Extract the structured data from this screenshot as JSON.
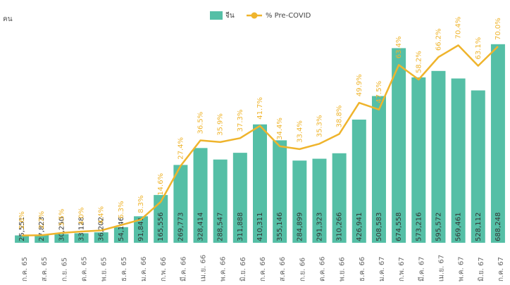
{
  "chart_data": {
    "type": "bar_line",
    "ylabel": "คน",
    "categories": [
      "ก.ค. 65",
      "ส.ค. 65",
      "ก.ย. 65",
      "ต.ค. 65",
      "พ.ย. 65",
      "ธ.ค. 65",
      "ม.ค. 66",
      "ก.พ. 66",
      "มี.ค. 66",
      "เม.ย. 66",
      "พ.ค. 66",
      "มิ.ย. 66",
      "ก.ค. 66",
      "ส.ค. 66",
      "ก.ย. 66",
      "ต.ค. 66",
      "พ.ย. 66",
      "ธ.ค. 66",
      "ม.ค. 67",
      "ก.พ. 67",
      "มี.ค. 67",
      "เม.ย. 67",
      "พ.ค. 67",
      "มิ.ย. 67",
      "ก.ค. 67"
    ],
    "series": [
      {
        "name": "จีน",
        "type": "bar",
        "color": "#55bfa6",
        "values": [
          25551,
          27823,
          30250,
          33128,
          36202,
          54146,
          91841,
          165556,
          269773,
          328414,
          288547,
          311888,
          410311,
          355146,
          284899,
          291323,
          310266,
          426941,
          508583,
          674558,
          573216,
          595572,
          569461,
          528112,
          688248
        ],
        "value_labels": [
          "25,551",
          "27,823",
          "30,250",
          "33,128",
          "36,202",
          "54,146",
          "91,841",
          "165,556",
          "269,773",
          "328,414",
          "288,547",
          "311,888",
          "410,311",
          "355,146",
          "284,899",
          "291,323",
          "310,266",
          "426,941",
          "508,583",
          "674,558",
          "573,216",
          "595,572",
          "569,461",
          "528,112",
          "688,248"
        ]
      },
      {
        "name": "% Pre-COVID",
        "type": "line",
        "axis": "y2",
        "color": "#efb42c",
        "values": [
          2.6,
          2.7,
          3.5,
          4.0,
          4.4,
          6.3,
          8.3,
          14.6,
          27.4,
          36.5,
          35.9,
          37.3,
          41.7,
          34.4,
          33.4,
          35.3,
          38.8,
          49.9,
          47.5,
          63.4,
          58.2,
          66.2,
          70.4,
          63.1,
          70.0
        ],
        "value_labels": [
          "2.6%",
          "2.7%",
          "3.5%",
          "4.0%",
          "4.4%",
          "6.3%",
          "8.3%",
          "14.6%",
          "27.4%",
          "36.5%",
          "35.9%",
          "37.3%",
          "41.7%",
          "34.4%",
          "33.4%",
          "35.3%",
          "38.8%",
          "49.9%",
          "47.5%",
          "63.4%",
          "58.2%",
          "66.2%",
          "70.4%",
          "63.1%",
          "70.0%"
        ]
      }
    ],
    "ylim": [
      0,
      700000
    ],
    "y2lim": [
      0,
      72
    ],
    "legend": "top"
  }
}
